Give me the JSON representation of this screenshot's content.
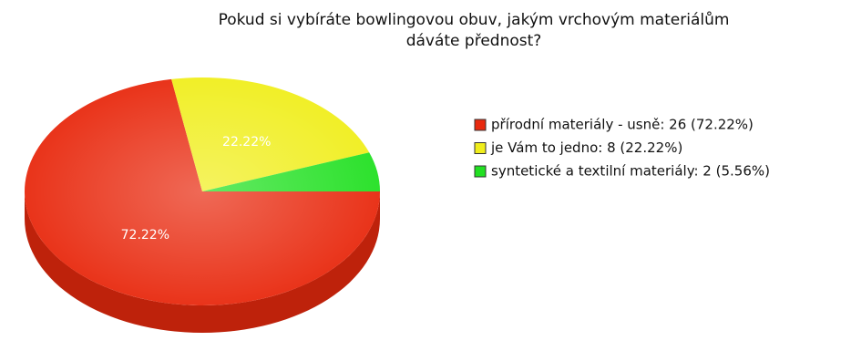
{
  "chart_data": {
    "type": "pie",
    "title": [
      "Pokud si vybíráte bowlingovou obuv, jakým vrchovým materiálům",
      "dáváte přednost?"
    ],
    "categories": [
      "přírodní materiály - usně: 26 (72.22%)",
      "je Vám to jedno: 8 (22.22%)",
      "syntetické a textilní materiály: 2 (5.56%)"
    ],
    "values": [
      72.22,
      22.22,
      5.56
    ],
    "value_labels": [
      "72.22%",
      "22.22%",
      null
    ],
    "colors": [
      "#e8290e",
      "#f0ee1c",
      "#22e022"
    ],
    "legend": "right"
  }
}
